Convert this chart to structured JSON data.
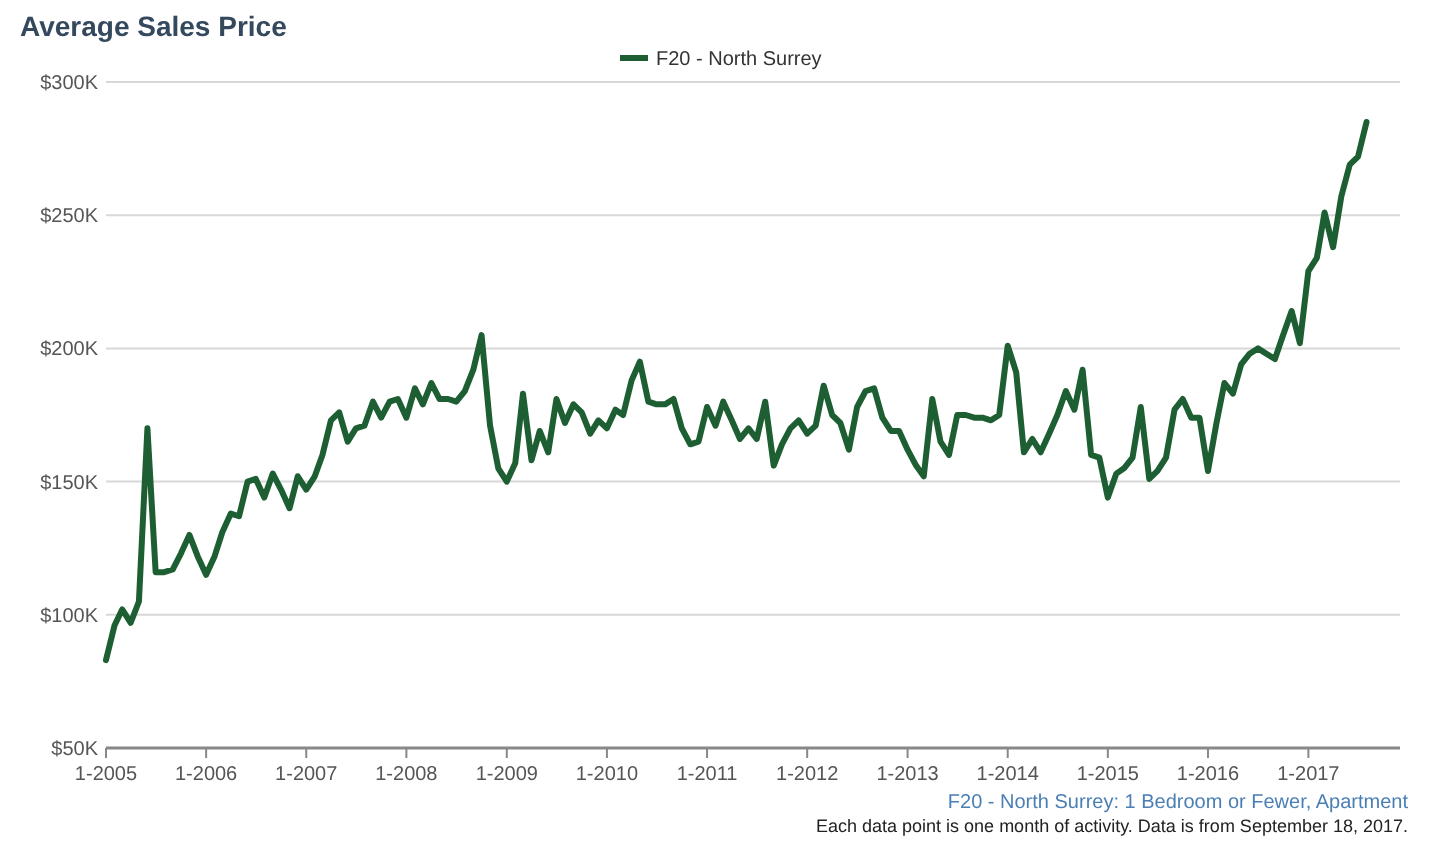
{
  "chart_data": {
    "type": "line",
    "title": "Average Sales Price",
    "x": [
      "2005-01",
      "2005-02",
      "2005-03",
      "2005-04",
      "2005-05",
      "2005-06",
      "2005-07",
      "2005-08",
      "2005-09",
      "2005-10",
      "2005-11",
      "2005-12",
      "2006-01",
      "2006-02",
      "2006-03",
      "2006-04",
      "2006-05",
      "2006-06",
      "2006-07",
      "2006-08",
      "2006-09",
      "2006-10",
      "2006-11",
      "2006-12",
      "2007-01",
      "2007-02",
      "2007-03",
      "2007-04",
      "2007-05",
      "2007-06",
      "2007-07",
      "2007-08",
      "2007-09",
      "2007-10",
      "2007-11",
      "2007-12",
      "2008-01",
      "2008-02",
      "2008-03",
      "2008-04",
      "2008-05",
      "2008-06",
      "2008-07",
      "2008-08",
      "2008-09",
      "2008-10",
      "2008-11",
      "2008-12",
      "2009-01",
      "2009-02",
      "2009-03",
      "2009-04",
      "2009-05",
      "2009-06",
      "2009-07",
      "2009-08",
      "2009-09",
      "2009-10",
      "2009-11",
      "2009-12",
      "2010-01",
      "2010-02",
      "2010-03",
      "2010-04",
      "2010-05",
      "2010-06",
      "2010-07",
      "2010-08",
      "2010-09",
      "2010-10",
      "2010-11",
      "2010-12",
      "2011-01",
      "2011-02",
      "2011-03",
      "2011-04",
      "2011-05",
      "2011-06",
      "2011-07",
      "2011-08",
      "2011-09",
      "2011-10",
      "2011-11",
      "2011-12",
      "2012-01",
      "2012-02",
      "2012-03",
      "2012-04",
      "2012-05",
      "2012-06",
      "2012-07",
      "2012-08",
      "2012-09",
      "2012-10",
      "2012-11",
      "2012-12",
      "2013-01",
      "2013-02",
      "2013-03",
      "2013-04",
      "2013-05",
      "2013-06",
      "2013-07",
      "2013-08",
      "2013-09",
      "2013-10",
      "2013-11",
      "2013-12",
      "2014-01",
      "2014-02",
      "2014-03",
      "2014-04",
      "2014-05",
      "2014-06",
      "2014-07",
      "2014-08",
      "2014-09",
      "2014-10",
      "2014-11",
      "2014-12",
      "2015-01",
      "2015-02",
      "2015-03",
      "2015-04",
      "2015-05",
      "2015-06",
      "2015-07",
      "2015-08",
      "2015-09",
      "2015-10",
      "2015-11",
      "2015-12",
      "2016-01",
      "2016-02",
      "2016-03",
      "2016-04",
      "2016-05",
      "2016-06",
      "2016-07",
      "2016-08",
      "2016-09",
      "2016-10",
      "2016-11",
      "2016-12",
      "2017-01",
      "2017-02",
      "2017-03",
      "2017-04",
      "2017-05",
      "2017-06",
      "2017-07",
      "2017-08"
    ],
    "series": [
      {
        "name": "F20 - North Surrey",
        "color": "#1e5e33",
        "values": [
          83000,
          96000,
          102000,
          97000,
          105000,
          170000,
          116000,
          116000,
          117000,
          123000,
          130000,
          122000,
          115000,
          122000,
          131000,
          138000,
          137000,
          150000,
          151000,
          144000,
          153000,
          147000,
          140000,
          152000,
          147000,
          152000,
          160000,
          173000,
          176000,
          165000,
          170000,
          171000,
          180000,
          174000,
          180000,
          181000,
          174000,
          185000,
          179000,
          187000,
          181000,
          181000,
          180000,
          184000,
          192000,
          205000,
          171000,
          155000,
          150000,
          157000,
          183000,
          158000,
          169000,
          161000,
          181000,
          172000,
          179000,
          176000,
          168000,
          173000,
          170000,
          177000,
          175000,
          188000,
          195000,
          180000,
          179000,
          179000,
          181000,
          170000,
          164000,
          165000,
          178000,
          171000,
          180000,
          173000,
          166000,
          170000,
          166000,
          180000,
          156000,
          164000,
          170000,
          173000,
          168000,
          171000,
          186000,
          175000,
          172000,
          162000,
          178000,
          184000,
          185000,
          174000,
          169000,
          169000,
          162000,
          156000,
          152000,
          181000,
          165000,
          160000,
          175000,
          175000,
          174000,
          174000,
          173000,
          175000,
          201000,
          191000,
          161000,
          166000,
          161000,
          168000,
          175000,
          184000,
          177000,
          192000,
          160000,
          159000,
          144000,
          153000,
          155000,
          159000,
          178000,
          151000,
          154000,
          159000,
          177000,
          181000,
          174000,
          174000,
          154000,
          172000,
          187000,
          183000,
          194000,
          198000,
          200000,
          198000,
          196000,
          205000,
          214000,
          202000,
          229000,
          234000,
          251000,
          238000,
          257000,
          269000,
          272000,
          285000
        ]
      }
    ],
    "xlim": [
      "2005-01",
      "2017-12"
    ],
    "xticks": [
      {
        "value": "2005-01",
        "label": "1-2005"
      },
      {
        "value": "2006-01",
        "label": "1-2006"
      },
      {
        "value": "2007-01",
        "label": "1-2007"
      },
      {
        "value": "2008-01",
        "label": "1-2008"
      },
      {
        "value": "2009-01",
        "label": "1-2009"
      },
      {
        "value": "2010-01",
        "label": "1-2010"
      },
      {
        "value": "2011-01",
        "label": "1-2011"
      },
      {
        "value": "2012-01",
        "label": "1-2012"
      },
      {
        "value": "2013-01",
        "label": "1-2013"
      },
      {
        "value": "2014-01",
        "label": "1-2014"
      },
      {
        "value": "2015-01",
        "label": "1-2015"
      },
      {
        "value": "2016-01",
        "label": "1-2016"
      },
      {
        "value": "2017-01",
        "label": "1-2017"
      }
    ],
    "ylim": [
      50000,
      300000
    ],
    "yticks": [
      {
        "value": 50000,
        "label": "$50K"
      },
      {
        "value": 100000,
        "label": "$100K"
      },
      {
        "value": 150000,
        "label": "$150K"
      },
      {
        "value": 200000,
        "label": "$200K"
      },
      {
        "value": 250000,
        "label": "$250K"
      },
      {
        "value": 300000,
        "label": "$300K"
      }
    ],
    "grid": "y",
    "legend": "top",
    "marker": "none",
    "line_style": "solid",
    "annotations": [
      "F20 - North Surrey: 1 Bedroom or Fewer, Apartment",
      "Each data point is one month of activity. Data is from September 18, 2017."
    ]
  }
}
